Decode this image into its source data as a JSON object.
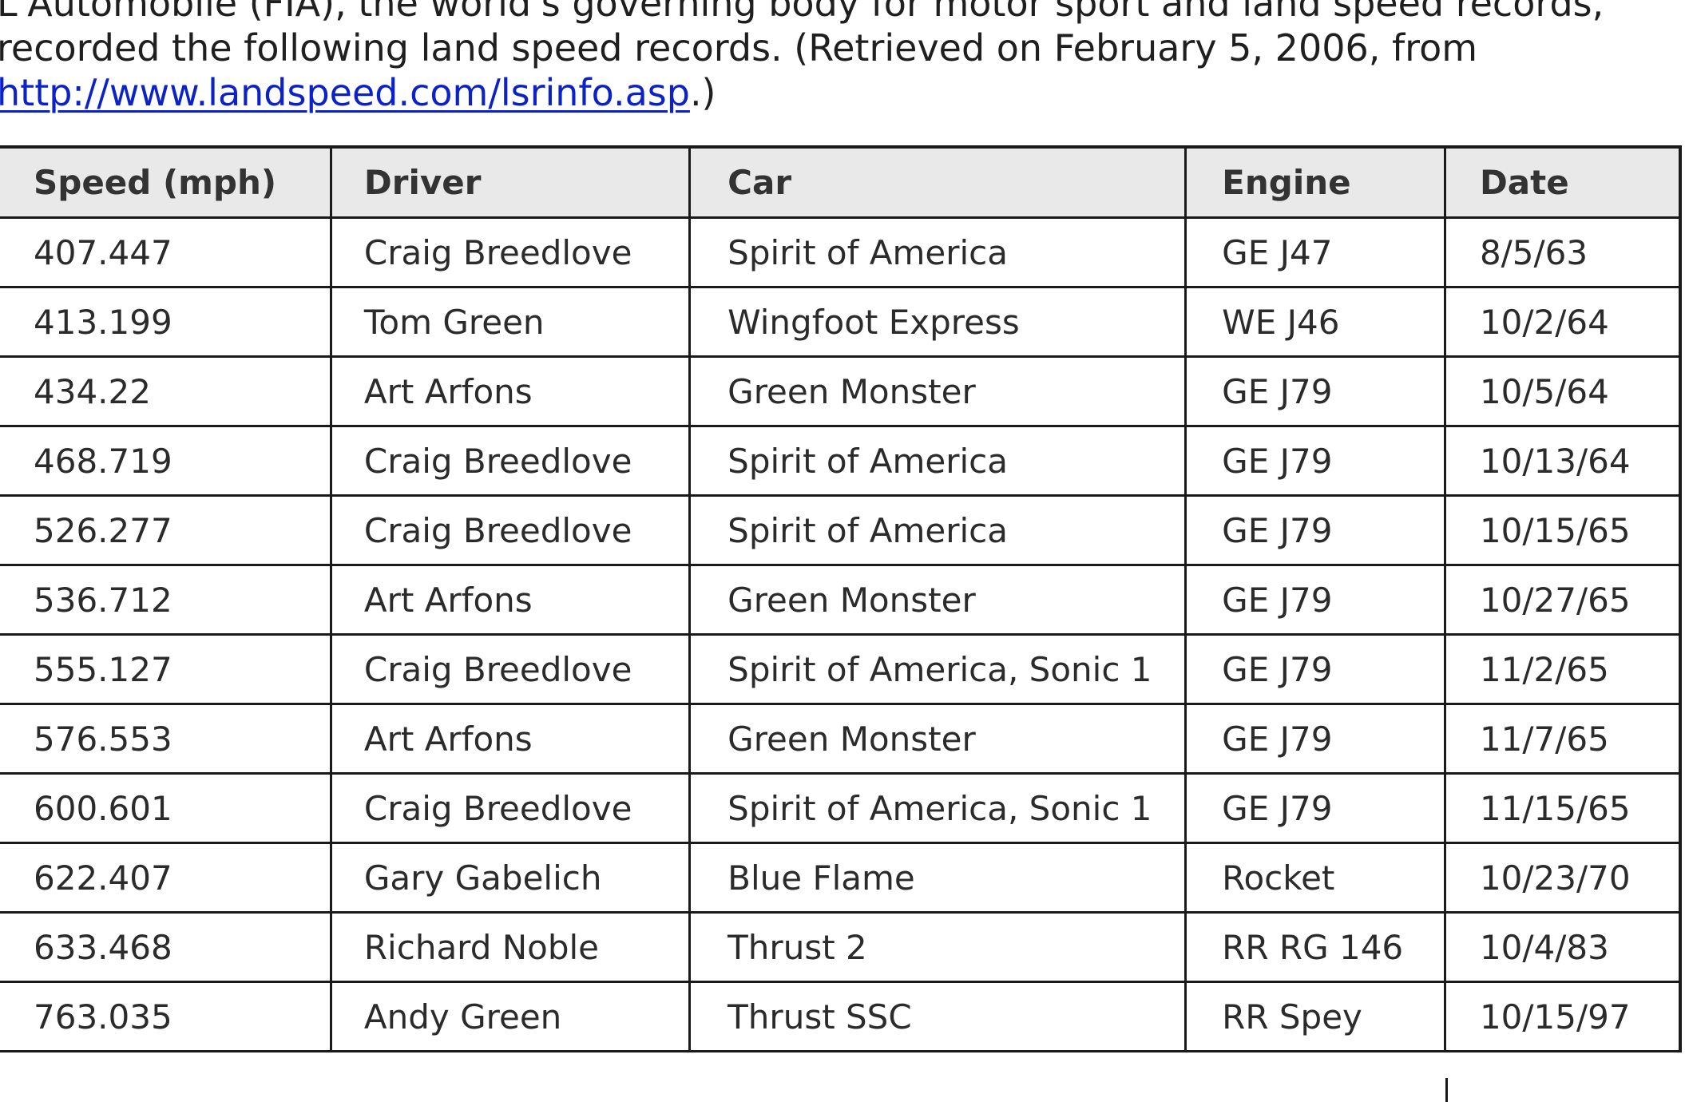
{
  "intro": {
    "line1": "L'Automobile (FIA), the world's governing body for motor sport and land speed records,",
    "line2": "recorded the following land speed records. (Retrieved on February 5, 2006, from",
    "link": "http://www.landspeed.com/lsrinfo.asp",
    "line3_suffix": ".)"
  },
  "table": {
    "headers": [
      "Speed (mph)",
      "Driver",
      "Car",
      "Engine",
      "Date"
    ],
    "rows": [
      [
        "407.447",
        "Craig Breedlove",
        "Spirit of America",
        "GE J47",
        "8/5/63"
      ],
      [
        "413.199",
        "Tom Green",
        "Wingfoot Express",
        "WE J46",
        "10/2/64"
      ],
      [
        "434.22",
        "Art Arfons",
        "Green Monster",
        "GE J79",
        "10/5/64"
      ],
      [
        "468.719",
        "Craig Breedlove",
        "Spirit of America",
        "GE J79",
        "10/13/64"
      ],
      [
        "526.277",
        "Craig Breedlove",
        "Spirit of America",
        "GE J79",
        "10/15/65"
      ],
      [
        "536.712",
        "Art Arfons",
        "Green Monster",
        "GE J79",
        "10/27/65"
      ],
      [
        "555.127",
        "Craig Breedlove",
        "Spirit of America, Sonic 1",
        "GE J79",
        "11/2/65"
      ],
      [
        "576.553",
        "Art Arfons",
        "Green Monster",
        "GE J79",
        "11/7/65"
      ],
      [
        "600.601",
        "Craig Breedlove",
        "Spirit of America, Sonic 1",
        "GE J79",
        "11/15/65"
      ],
      [
        "622.407",
        "Gary Gabelich",
        "Blue Flame",
        "Rocket",
        "10/23/70"
      ],
      [
        "633.468",
        "Richard Noble",
        "Thrust 2",
        "RR RG 146",
        "10/4/83"
      ],
      [
        "763.035",
        "Andy Green",
        "Thrust SSC",
        "RR Spey",
        "10/15/97"
      ]
    ]
  }
}
